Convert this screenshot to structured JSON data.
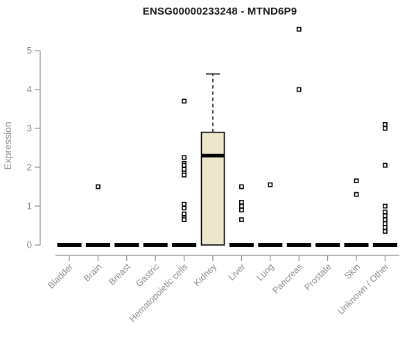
{
  "chart_data": {
    "type": "boxplot",
    "title": "ENSG00000233248 - MTND6P9",
    "xlabel": "",
    "ylabel": "Expression",
    "ylim": [
      0,
      5
    ],
    "yticks": [
      0,
      1,
      2,
      3,
      4,
      5
    ],
    "grid": false,
    "legend": "none",
    "categories": [
      "Bladder",
      "Brain",
      "Breast",
      "Gastric",
      "Hematopoietic cells",
      "Kidney",
      "Liver",
      "Lung",
      "Pancreas",
      "Prostate",
      "Skin",
      "Unknown / Other"
    ],
    "boxes": [
      {
        "category": "Bladder",
        "q1": 0,
        "median": 0,
        "q3": 0,
        "whisker_low": 0,
        "whisker_high": 0,
        "outliers": []
      },
      {
        "category": "Brain",
        "q1": 0,
        "median": 0,
        "q3": 0,
        "whisker_low": 0,
        "whisker_high": 0,
        "outliers": [
          1.5
        ]
      },
      {
        "category": "Breast",
        "q1": 0,
        "median": 0,
        "q3": 0,
        "whisker_low": 0,
        "whisker_high": 0,
        "outliers": []
      },
      {
        "category": "Gastric",
        "q1": 0,
        "median": 0,
        "q3": 0,
        "whisker_low": 0,
        "whisker_high": 0,
        "outliers": []
      },
      {
        "category": "Hematopoietic cells",
        "q1": 0,
        "median": 0,
        "q3": 0,
        "whisker_low": 0,
        "whisker_high": 0,
        "outliers": [
          3.7,
          2.25,
          2.1,
          2.05,
          1.95,
          1.85,
          1.8,
          1.05,
          0.95,
          0.8,
          0.7,
          0.65
        ]
      },
      {
        "category": "Kidney",
        "q1": 0,
        "median": 2.3,
        "q3": 2.9,
        "whisker_low": 0,
        "whisker_high": 4.4,
        "outliers": []
      },
      {
        "category": "Liver",
        "q1": 0,
        "median": 0,
        "q3": 0,
        "whisker_low": 0,
        "whisker_high": 0,
        "outliers": [
          1.5,
          1.1,
          1.0,
          0.9,
          0.65
        ]
      },
      {
        "category": "Lung",
        "q1": 0,
        "median": 0,
        "q3": 0,
        "whisker_low": 0,
        "whisker_high": 0,
        "outliers": [
          1.55
        ]
      },
      {
        "category": "Pancreas",
        "q1": 0,
        "median": 0,
        "q3": 0,
        "whisker_low": 0,
        "whisker_high": 0,
        "outliers": [
          5.55,
          4.0
        ]
      },
      {
        "category": "Prostate",
        "q1": 0,
        "median": 0,
        "q3": 0,
        "whisker_low": 0,
        "whisker_high": 0,
        "outliers": []
      },
      {
        "category": "Skin",
        "q1": 0,
        "median": 0,
        "q3": 0,
        "whisker_low": 0,
        "whisker_high": 0,
        "outliers": [
          1.65,
          1.3
        ]
      },
      {
        "category": "Unknown / Other",
        "q1": 0,
        "median": 0,
        "q3": 0,
        "whisker_low": 0,
        "whisker_high": 0,
        "outliers": [
          3.1,
          3.0,
          2.05,
          1.0,
          0.85,
          0.75,
          0.65,
          0.55,
          0.45,
          0.35
        ]
      }
    ],
    "colors": {
      "box_fill": "#ECE7CC",
      "box_stroke": "#000000",
      "median_color": "#000000",
      "outlier_stroke": "#000000",
      "outlier_fill": "#FFFFFF",
      "axis_color": "#8C8C8C",
      "axis_text_color": "#8C8C8C",
      "title_color": "#1A1A1A",
      "background": "#FFFFFF"
    }
  }
}
